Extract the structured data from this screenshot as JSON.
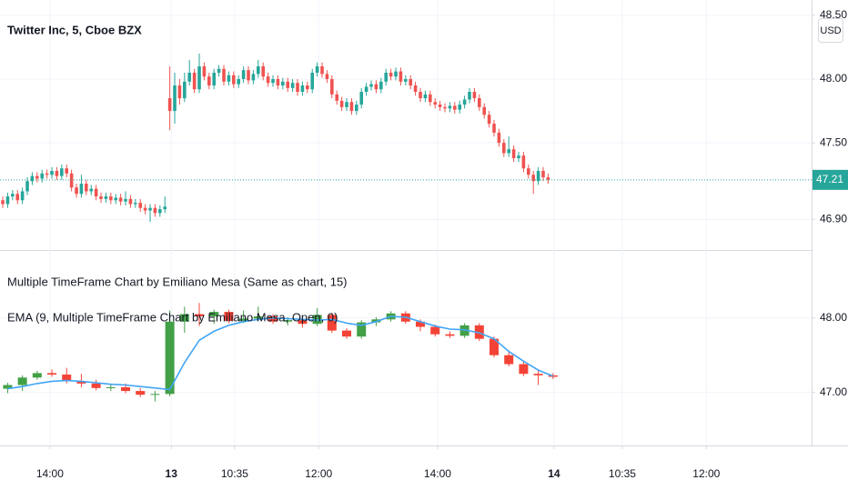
{
  "chart_data": [
    {
      "type": "candlestick",
      "title": "Twitter Inc, 5, Cboe BZX",
      "currency": "USD",
      "up_color": "#26a69a",
      "down_color": "#ef5350",
      "last_price": 47.21,
      "last_price_color": "#26a69a",
      "xlim": [
        -0.56,
        164.63
      ],
      "ylim": [
        46.66,
        48.62
      ],
      "yticks": [
        {
          "value": 48.5,
          "label": "48.50"
        },
        {
          "value": 48.0,
          "label": "48.00"
        },
        {
          "value": 47.5,
          "label": "47.50"
        },
        {
          "value": 46.9,
          "label": "46.90"
        }
      ],
      "x": [
        0,
        1,
        2,
        3,
        4,
        5,
        6,
        7,
        8,
        9,
        10,
        11,
        12,
        13,
        14,
        15,
        16,
        17,
        18,
        19,
        20,
        21,
        22,
        23,
        24,
        25,
        26,
        27,
        28,
        29,
        30,
        31,
        32,
        33,
        34,
        35,
        36,
        37,
        38,
        39,
        40,
        41,
        42,
        43,
        44,
        45,
        46,
        47,
        48,
        49,
        50,
        51,
        52,
        53,
        54,
        55,
        56,
        57,
        58,
        59,
        60,
        61,
        62,
        63,
        64,
        65,
        66,
        67,
        68,
        69,
        70,
        71,
        72,
        73,
        74,
        75,
        76,
        77,
        78,
        79,
        80,
        81,
        82,
        83,
        84,
        85,
        86,
        87,
        88,
        89,
        90,
        91,
        92,
        93,
        94,
        95,
        96,
        97,
        98,
        99,
        100,
        101,
        102,
        103,
        104,
        105,
        106,
        107,
        108,
        109,
        110,
        111
      ],
      "ohlc": [
        [
          47.05,
          47.08,
          46.99,
          47.02
        ],
        [
          47.02,
          47.11,
          46.99,
          47.08
        ],
        [
          47.08,
          47.13,
          47.05,
          47.1
        ],
        [
          47.1,
          47.13,
          47.02,
          47.05
        ],
        [
          47.05,
          47.15,
          47.02,
          47.12
        ],
        [
          47.12,
          47.23,
          47.09,
          47.2
        ],
        [
          47.2,
          47.27,
          47.17,
          47.24
        ],
        [
          47.24,
          47.27,
          47.19,
          47.22
        ],
        [
          47.22,
          47.29,
          47.19,
          47.26
        ],
        [
          47.26,
          47.29,
          47.22,
          47.25
        ],
        [
          47.25,
          47.31,
          47.22,
          47.28
        ],
        [
          47.28,
          47.31,
          47.21,
          47.24
        ],
        [
          47.24,
          47.33,
          47.21,
          47.3
        ],
        [
          47.3,
          47.33,
          47.23,
          47.26
        ],
        [
          47.26,
          47.29,
          47.12,
          47.15
        ],
        [
          47.15,
          47.18,
          47.07,
          47.1
        ],
        [
          47.1,
          47.25,
          47.07,
          47.18
        ],
        [
          47.18,
          47.21,
          47.09,
          47.12
        ],
        [
          47.12,
          47.17,
          47.09,
          47.14
        ],
        [
          47.14,
          47.17,
          47.05,
          47.08
        ],
        [
          47.08,
          47.11,
          47.03,
          47.06
        ],
        [
          47.06,
          47.11,
          47.03,
          47.08
        ],
        [
          47.08,
          47.11,
          47.02,
          47.05
        ],
        [
          47.05,
          47.1,
          47.02,
          47.07
        ],
        [
          47.07,
          47.1,
          47.01,
          47.04
        ],
        [
          47.04,
          47.12,
          47.01,
          47.06
        ],
        [
          47.06,
          47.09,
          46.99,
          47.02
        ],
        [
          47.02,
          47.06,
          46.99,
          47.03
        ],
        [
          47.03,
          47.06,
          46.96,
          46.99
        ],
        [
          46.99,
          47.02,
          46.94,
          46.97
        ],
        [
          46.97,
          47.02,
          46.88,
          46.99
        ],
        [
          46.99,
          47.02,
          46.92,
          46.95
        ],
        [
          46.95,
          47.01,
          46.92,
          46.98
        ],
        [
          46.98,
          47.08,
          46.95,
          47.0
        ],
        [
          47.85,
          48.1,
          47.6,
          47.75
        ],
        [
          47.75,
          48.05,
          47.65,
          47.95
        ],
        [
          47.95,
          48.0,
          47.8,
          47.85
        ],
        [
          47.85,
          48.05,
          47.82,
          47.98
        ],
        [
          47.98,
          48.15,
          47.95,
          48.05
        ],
        [
          48.05,
          48.08,
          47.89,
          47.92
        ],
        [
          47.92,
          48.2,
          47.89,
          48.1
        ],
        [
          48.1,
          48.13,
          47.99,
          48.02
        ],
        [
          48.02,
          48.05,
          47.92,
          47.95
        ],
        [
          47.95,
          48.08,
          47.92,
          48.05
        ],
        [
          48.05,
          48.11,
          48.02,
          48.08
        ],
        [
          48.08,
          48.11,
          47.95,
          47.98
        ],
        [
          47.98,
          48.06,
          47.95,
          48.03
        ],
        [
          48.03,
          48.06,
          47.93,
          47.96
        ],
        [
          47.96,
          48.03,
          47.93,
          48.0
        ],
        [
          48.0,
          48.1,
          47.97,
          48.07
        ],
        [
          48.07,
          48.1,
          47.96,
          47.99
        ],
        [
          47.99,
          48.07,
          47.96,
          48.04
        ],
        [
          48.04,
          48.15,
          48.01,
          48.1
        ],
        [
          48.1,
          48.13,
          47.99,
          48.02
        ],
        [
          48.02,
          48.05,
          47.94,
          47.97
        ],
        [
          47.97,
          48.03,
          47.94,
          48.0
        ],
        [
          48.0,
          48.03,
          47.92,
          47.95
        ],
        [
          47.95,
          48.01,
          47.92,
          47.98
        ],
        [
          47.98,
          48.01,
          47.9,
          47.93
        ],
        [
          47.93,
          48.0,
          47.9,
          47.97
        ],
        [
          47.97,
          48.0,
          47.87,
          47.9
        ],
        [
          47.9,
          47.98,
          47.87,
          47.95
        ],
        [
          47.95,
          47.98,
          47.89,
          47.92
        ],
        [
          47.92,
          48.08,
          47.89,
          48.05
        ],
        [
          48.05,
          48.13,
          48.02,
          48.1
        ],
        [
          48.1,
          48.13,
          48.01,
          48.04
        ],
        [
          48.04,
          48.07,
          47.97,
          48.0
        ],
        [
          48.0,
          48.03,
          47.85,
          47.88
        ],
        [
          47.88,
          47.91,
          47.8,
          47.83
        ],
        [
          47.83,
          47.86,
          47.75,
          47.78
        ],
        [
          47.78,
          47.85,
          47.75,
          47.82
        ],
        [
          47.82,
          47.85,
          47.72,
          47.75
        ],
        [
          47.75,
          47.83,
          47.72,
          47.8
        ],
        [
          47.8,
          47.93,
          47.77,
          47.9
        ],
        [
          47.9,
          47.97,
          47.87,
          47.94
        ],
        [
          47.94,
          47.99,
          47.91,
          47.96
        ],
        [
          47.96,
          47.99,
          47.89,
          47.92
        ],
        [
          47.92,
          48.01,
          47.89,
          47.98
        ],
        [
          47.98,
          48.08,
          47.95,
          48.05
        ],
        [
          48.05,
          48.08,
          47.99,
          48.02
        ],
        [
          48.02,
          48.09,
          47.99,
          48.06
        ],
        [
          48.06,
          48.09,
          47.95,
          47.98
        ],
        [
          47.98,
          48.03,
          47.95,
          48.0
        ],
        [
          48.0,
          48.03,
          47.92,
          47.95
        ],
        [
          47.95,
          47.98,
          47.87,
          47.9
        ],
        [
          47.9,
          47.93,
          47.82,
          47.85
        ],
        [
          47.85,
          47.91,
          47.82,
          47.88
        ],
        [
          47.88,
          47.91,
          47.79,
          47.82
        ],
        [
          47.82,
          47.85,
          47.77,
          47.8
        ],
        [
          47.8,
          47.83,
          47.75,
          47.78
        ],
        [
          47.78,
          47.81,
          47.74,
          47.77
        ],
        [
          47.77,
          47.82,
          47.74,
          47.79
        ],
        [
          47.79,
          47.82,
          47.73,
          47.76
        ],
        [
          47.76,
          47.83,
          47.73,
          47.8
        ],
        [
          47.8,
          47.87,
          47.77,
          47.84
        ],
        [
          47.84,
          47.93,
          47.81,
          47.9
        ],
        [
          47.9,
          47.93,
          47.82,
          47.85
        ],
        [
          47.85,
          47.88,
          47.75,
          47.78
        ],
        [
          47.78,
          47.81,
          47.69,
          47.72
        ],
        [
          47.72,
          47.75,
          47.62,
          47.65
        ],
        [
          47.65,
          47.68,
          47.55,
          47.58
        ],
        [
          47.58,
          47.61,
          47.47,
          47.5
        ],
        [
          47.5,
          47.53,
          47.39,
          47.42
        ],
        [
          47.42,
          47.55,
          47.39,
          47.45
        ],
        [
          47.45,
          47.48,
          47.35,
          47.38
        ],
        [
          47.38,
          47.43,
          47.35,
          47.4
        ],
        [
          47.4,
          47.43,
          47.27,
          47.3
        ],
        [
          47.3,
          47.33,
          47.22,
          47.25
        ],
        [
          47.25,
          47.28,
          47.1,
          47.2
        ],
        [
          47.2,
          47.31,
          47.17,
          47.28
        ],
        [
          47.28,
          47.31,
          47.2,
          47.23
        ],
        [
          47.23,
          47.26,
          47.18,
          47.21
        ]
      ]
    },
    {
      "type": "candlestick",
      "name": "Multiple TimeFrame Chart by Emiliano Mesa (Same as chart, 15)",
      "up_color": "#43a047",
      "down_color": "#f44336",
      "xlim": [
        -0.56,
        164.63
      ],
      "ylim": [
        46.29,
        48.91
      ],
      "yticks": [
        {
          "value": 48.0,
          "label": "48.00"
        },
        {
          "value": 47.0,
          "label": "47.00"
        }
      ],
      "xticks": [
        {
          "value": 9.6,
          "label": "14:00"
        },
        {
          "value": 34.3,
          "label": "13"
        },
        {
          "value": 47.2,
          "label": "10:35"
        },
        {
          "value": 64.3,
          "label": "12:00"
        },
        {
          "value": 88.5,
          "label": "14:00"
        },
        {
          "value": 112.2,
          "label": "14"
        },
        {
          "value": 126.1,
          "label": "10:35"
        },
        {
          "value": 143.2,
          "label": "12:00"
        }
      ],
      "x": [
        1,
        4,
        7,
        10,
        13,
        16,
        19,
        22,
        25,
        28,
        31,
        34,
        37,
        40,
        43,
        46,
        49,
        52,
        55,
        58,
        61,
        64,
        67,
        70,
        73,
        76,
        79,
        82,
        85,
        88,
        91,
        94,
        97,
        100,
        103,
        106,
        109,
        112
      ],
      "ohlc": [
        [
          47.05,
          47.13,
          46.99,
          47.1
        ],
        [
          47.1,
          47.23,
          47.02,
          47.2
        ],
        [
          47.2,
          47.29,
          47.17,
          47.26
        ],
        [
          47.26,
          47.31,
          47.21,
          47.24
        ],
        [
          47.24,
          47.33,
          47.12,
          47.15
        ],
        [
          47.15,
          47.25,
          47.07,
          47.12
        ],
        [
          47.12,
          47.17,
          47.03,
          47.06
        ],
        [
          47.06,
          47.11,
          47.02,
          47.07
        ],
        [
          47.07,
          47.12,
          46.99,
          47.02
        ],
        [
          47.02,
          47.06,
          46.94,
          46.97
        ],
        [
          46.97,
          47.02,
          46.88,
          46.98
        ],
        [
          46.98,
          48.1,
          46.95,
          47.95
        ],
        [
          47.95,
          48.15,
          47.8,
          48.05
        ],
        [
          48.05,
          48.2,
          47.89,
          48.02
        ],
        [
          48.02,
          48.11,
          47.92,
          48.08
        ],
        [
          48.08,
          48.11,
          47.93,
          47.96
        ],
        [
          47.96,
          48.1,
          47.93,
          47.99
        ],
        [
          47.99,
          48.15,
          47.96,
          48.02
        ],
        [
          48.02,
          48.05,
          47.92,
          47.95
        ],
        [
          47.95,
          48.01,
          47.9,
          47.97
        ],
        [
          47.97,
          48.0,
          47.87,
          47.92
        ],
        [
          47.92,
          48.13,
          47.89,
          48.04
        ],
        [
          48.04,
          48.07,
          47.8,
          47.83
        ],
        [
          47.83,
          47.86,
          47.72,
          47.75
        ],
        [
          47.75,
          47.97,
          47.72,
          47.94
        ],
        [
          47.94,
          48.01,
          47.89,
          47.98
        ],
        [
          47.98,
          48.09,
          47.95,
          48.06
        ],
        [
          48.06,
          48.09,
          47.92,
          47.95
        ],
        [
          47.95,
          47.98,
          47.82,
          47.88
        ],
        [
          47.88,
          47.91,
          47.75,
          47.78
        ],
        [
          47.78,
          47.82,
          47.73,
          47.76
        ],
        [
          47.76,
          47.93,
          47.73,
          47.9
        ],
        [
          47.9,
          47.93,
          47.69,
          47.72
        ],
        [
          47.72,
          47.75,
          47.47,
          47.5
        ],
        [
          47.5,
          47.55,
          47.35,
          47.38
        ],
        [
          47.38,
          47.43,
          47.22,
          47.25
        ],
        [
          47.25,
          47.31,
          47.1,
          47.23
        ],
        [
          47.23,
          47.26,
          47.18,
          47.21
        ]
      ],
      "series": [
        {
          "name": "EMA (9, Multiple TimeFrame Chart by Emiliano Mesa, Open, 0)",
          "color": "#42a5f5",
          "values": [
            47.05,
            47.08,
            47.12,
            47.15,
            47.16,
            47.15,
            47.13,
            47.11,
            47.1,
            47.08,
            47.06,
            47.04,
            47.4,
            47.7,
            47.82,
            47.9,
            47.95,
            47.98,
            48.0,
            47.99,
            47.98,
            47.97,
            47.98,
            47.93,
            47.9,
            47.95,
            48.02,
            48.01,
            47.95,
            47.89,
            47.85,
            47.84,
            47.8,
            47.72,
            47.55,
            47.42,
            47.3,
            47.22
          ]
        }
      ]
    }
  ]
}
